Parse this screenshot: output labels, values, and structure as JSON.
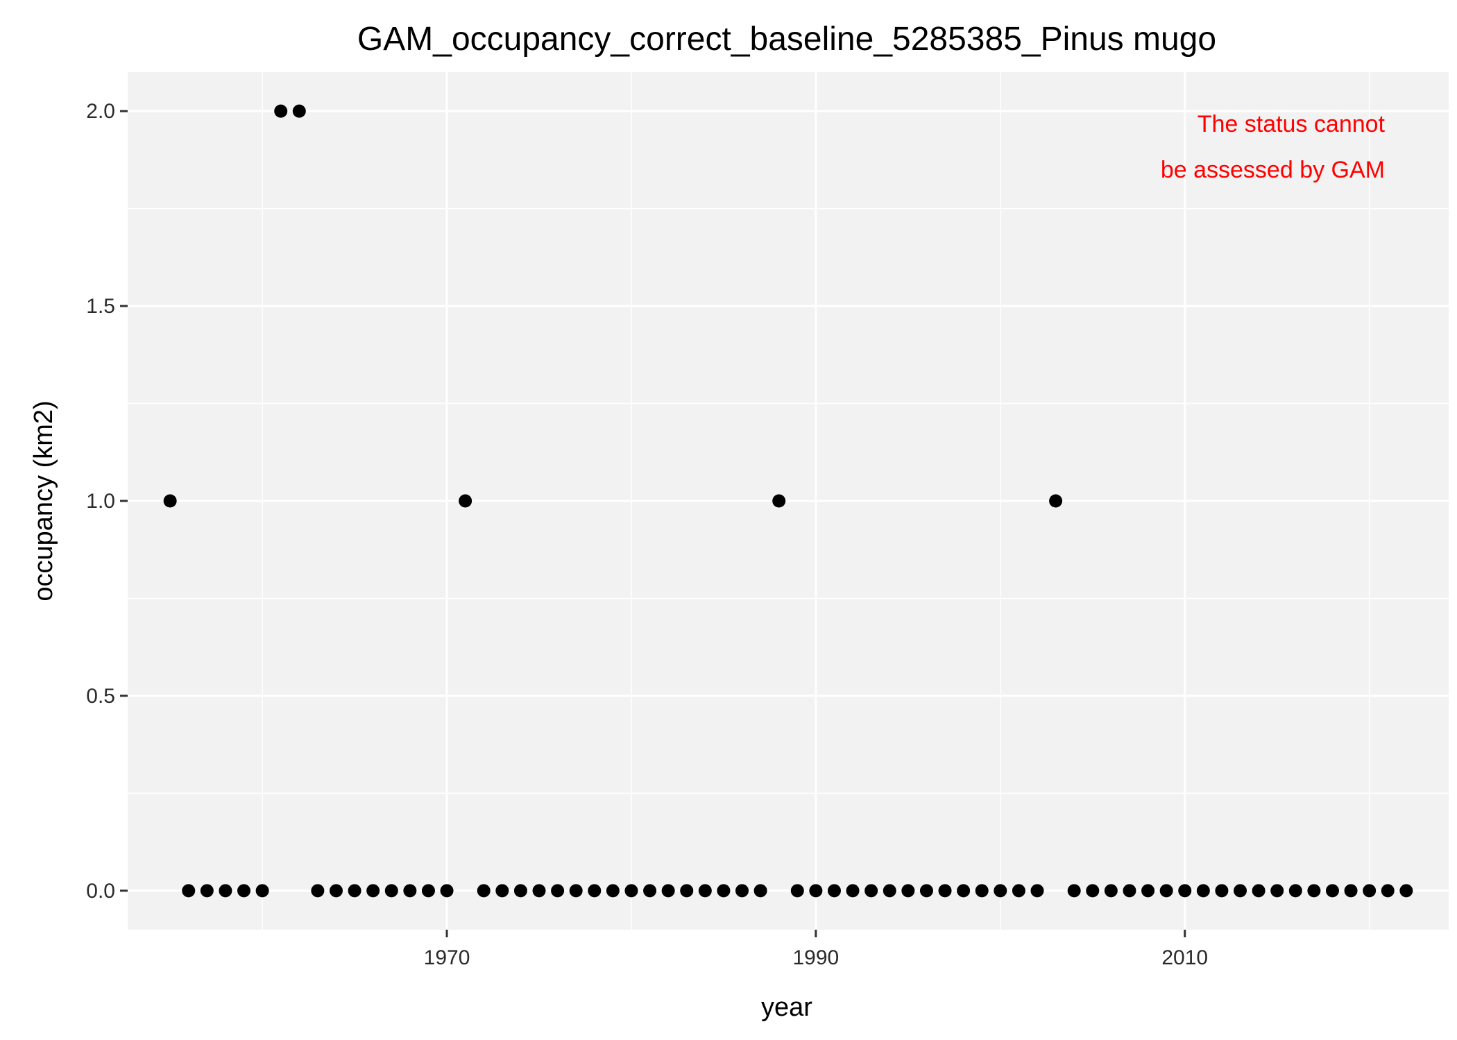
{
  "chart_data": {
    "type": "scatter",
    "title": "GAM_occupancy_correct_baseline_5285385_Pinus mugo",
    "xlabel": "year",
    "ylabel": "occupancy (km2)",
    "xlim": [
      1952.7,
      2024.3
    ],
    "ylim": [
      -0.1,
      2.1
    ],
    "x_ticks": [
      1970,
      1990,
      2010
    ],
    "y_ticks": [
      0.0,
      0.5,
      1.0,
      1.5,
      2.0
    ],
    "y_tick_labels": [
      "0.0",
      "0.5",
      "1.0",
      "1.5",
      "2.0"
    ],
    "grid": true,
    "legend": "none",
    "annotation": {
      "lines": [
        "The status cannot",
        "be assessed by GAM"
      ],
      "color": "#ff0000",
      "position": "top-right"
    },
    "points": {
      "x": [
        1955,
        1956,
        1957,
        1958,
        1959,
        1960,
        1961,
        1962,
        1963,
        1964,
        1965,
        1966,
        1967,
        1968,
        1969,
        1970,
        1971,
        1972,
        1973,
        1974,
        1975,
        1976,
        1977,
        1978,
        1979,
        1980,
        1981,
        1982,
        1983,
        1984,
        1985,
        1986,
        1987,
        1988,
        1989,
        1990,
        1991,
        1992,
        1993,
        1994,
        1995,
        1996,
        1997,
        1998,
        1999,
        2000,
        2001,
        2002,
        2003,
        2004,
        2005,
        2006,
        2007,
        2008,
        2009,
        2010,
        2011,
        2012,
        2013,
        2014,
        2015,
        2016,
        2017,
        2018,
        2019,
        2020,
        2021,
        2022
      ],
      "y": [
        1,
        0,
        0,
        0,
        0,
        0,
        2,
        2,
        0,
        0,
        0,
        0,
        0,
        0,
        0,
        0,
        1,
        0,
        0,
        0,
        0,
        0,
        0,
        0,
        0,
        0,
        0,
        0,
        0,
        0,
        0,
        0,
        0,
        1,
        0,
        0,
        0,
        0,
        0,
        0,
        0,
        0,
        0,
        0,
        0,
        0,
        0,
        0,
        1,
        0,
        0,
        0,
        0,
        0,
        0,
        0,
        0,
        0,
        0,
        0,
        0,
        0,
        0,
        0,
        0,
        0,
        0,
        0
      ]
    },
    "colors": {
      "panel": "#f2f2f2",
      "grid": "#ffffff",
      "point": "#000000"
    }
  }
}
